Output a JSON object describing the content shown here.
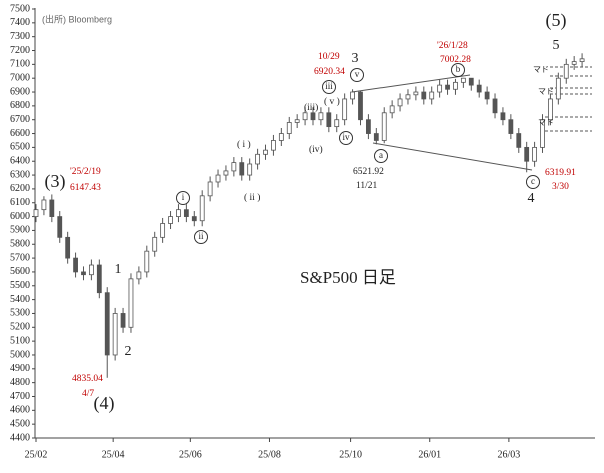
{
  "chart_data": {
    "type": "candlestick",
    "title": "S&P500 日足",
    "source": "(出所) Bloomberg",
    "color": "#555555",
    "x": [
      0,
      4,
      8,
      12,
      16,
      20,
      24,
      28,
      32,
      36,
      40,
      44,
      48,
      52,
      56,
      60,
      64,
      68,
      72,
      76,
      80,
      84,
      88,
      92,
      96,
      100,
      104,
      108,
      112,
      116,
      120,
      124,
      128,
      132,
      136,
      140,
      144,
      148,
      152,
      156,
      160,
      164,
      168,
      172,
      176,
      180,
      184,
      188,
      192,
      196,
      200,
      204,
      208,
      212,
      216,
      220,
      224,
      228,
      232,
      236,
      240,
      244,
      248,
      252,
      256,
      260,
      264,
      268,
      272,
      276
    ],
    "open": [
      6000,
      6050,
      6120,
      6000,
      5850,
      5700,
      5600,
      5580,
      5650,
      5450,
      5000,
      5300,
      5200,
      5550,
      5600,
      5750,
      5850,
      5950,
      6000,
      6050,
      6000,
      5970,
      6150,
      6250,
      6300,
      6330,
      6390,
      6300,
      6380,
      6450,
      6480,
      6550,
      6600,
      6680,
      6700,
      6750,
      6700,
      6750,
      6650,
      6700,
      6850,
      6900,
      6700,
      6600,
      6550,
      6750,
      6800,
      6850,
      6880,
      6900,
      6850,
      6900,
      6950,
      6920,
      6970,
      7000,
      6950,
      6900,
      6850,
      6750,
      6700,
      6600,
      6500,
      6400,
      6500,
      6700,
      6850,
      7000,
      7100,
      7120
    ],
    "high": [
      6090,
      6147,
      6160,
      6040,
      5890,
      5740,
      5640,
      5690,
      5690,
      5490,
      5340,
      5340,
      5590,
      5640,
      5790,
      5890,
      5990,
      6040,
      6090,
      6090,
      6040,
      6190,
      6290,
      6340,
      6370,
      6430,
      6430,
      6420,
      6490,
      6520,
      6590,
      6640,
      6720,
      6740,
      6790,
      6790,
      6790,
      6790,
      6740,
      6890,
      6920,
      6910,
      6740,
      6640,
      6790,
      6840,
      6890,
      6920,
      6940,
      6940,
      6940,
      6990,
      6990,
      6995,
      7002,
      7000,
      6990,
      6940,
      6890,
      6790,
      6740,
      6640,
      6540,
      6540,
      6740,
      6890,
      7040,
      7140,
      7160,
      7180
    ],
    "low": [
      5960,
      6010,
      5960,
      5810,
      5660,
      5560,
      5540,
      5540,
      5410,
      4835,
      4960,
      5160,
      5160,
      5510,
      5560,
      5710,
      5810,
      5910,
      5960,
      5960,
      5930,
      5930,
      6110,
      6210,
      6260,
      6290,
      6260,
      6260,
      6340,
      6410,
      6440,
      6510,
      6560,
      6640,
      6660,
      6660,
      6660,
      6610,
      6610,
      6660,
      6810,
      6660,
      6560,
      6522,
      6530,
      6710,
      6760,
      6810,
      6840,
      6810,
      6810,
      6860,
      6880,
      6880,
      6930,
      6910,
      6860,
      6810,
      6710,
      6660,
      6560,
      6460,
      6320,
      6360,
      6460,
      6660,
      6810,
      6960,
      7060,
      7080
    ],
    "close": [
      6050,
      6120,
      6000,
      5850,
      5700,
      5600,
      5580,
      5650,
      5450,
      5000,
      5300,
      5200,
      5550,
      5600,
      5750,
      5850,
      5950,
      6000,
      6050,
      6000,
      5970,
      6150,
      6250,
      6300,
      6330,
      6390,
      6300,
      6380,
      6450,
      6480,
      6550,
      6600,
      6680,
      6700,
      6750,
      6700,
      6750,
      6650,
      6700,
      6850,
      6900,
      6700,
      6600,
      6550,
      6750,
      6800,
      6850,
      6880,
      6900,
      6850,
      6900,
      6950,
      6920,
      6970,
      7000,
      6950,
      6900,
      6850,
      6750,
      6700,
      6600,
      6500,
      6400,
      6500,
      6700,
      6850,
      7000,
      7100,
      7120,
      7140
    ],
    "xlim": [
      0,
      280
    ],
    "xticks": [
      {
        "value": 0,
        "label": "25/02"
      },
      {
        "value": 39,
        "label": "25/04"
      },
      {
        "value": 78,
        "label": "25/06"
      },
      {
        "value": 118,
        "label": "25/08"
      },
      {
        "value": 159,
        "label": "25/10"
      },
      {
        "value": 199,
        "label": "26/01"
      },
      {
        "value": 239,
        "label": "26/03"
      }
    ],
    "ylim": [
      4400,
      7500
    ],
    "yticks": [
      4400,
      4500,
      4600,
      4700,
      4800,
      4900,
      5000,
      5100,
      5200,
      5300,
      5400,
      5500,
      5600,
      5700,
      5800,
      5900,
      6000,
      6100,
      6200,
      6300,
      6400,
      6500,
      6600,
      6700,
      6800,
      6900,
      7000,
      7100,
      7200,
      7300,
      7400,
      7500
    ],
    "annotations": [
      {
        "text": "(3)",
        "size": "big"
      },
      {
        "text": "'25/2/19",
        "color": "#c00000"
      },
      {
        "text": "6147.43",
        "color": "#c00000"
      },
      {
        "text": "1",
        "size": "mid"
      },
      {
        "text": "2",
        "size": "mid"
      },
      {
        "text": "4835.04",
        "color": "#c00000"
      },
      {
        "text": "4/7",
        "color": "#c00000"
      },
      {
        "text": "(4)",
        "size": "big"
      },
      {
        "text": "i",
        "circled": true
      },
      {
        "text": "ii",
        "circled": true
      },
      {
        "text": "( i )"
      },
      {
        "text": "( ii )"
      },
      {
        "text": "(iii)"
      },
      {
        "text": "( v )"
      },
      {
        "text": "(iv)"
      },
      {
        "text": "iii",
        "circled": true
      },
      {
        "text": "iv",
        "circled": true
      },
      {
        "text": "v",
        "circled": true
      },
      {
        "text": "3",
        "size": "mid"
      },
      {
        "text": "10/29",
        "color": "#c00000"
      },
      {
        "text": "6920.34",
        "color": "#c00000"
      },
      {
        "text": "a",
        "circled": true
      },
      {
        "text": "6521.92"
      },
      {
        "text": "11/21"
      },
      {
        "text": "b",
        "circled": true
      },
      {
        "text": "'26/1/28",
        "color": "#c00000"
      },
      {
        "text": "7002.28",
        "color": "#c00000"
      },
      {
        "text": "c",
        "circled": true
      },
      {
        "text": "4",
        "size": "mid"
      },
      {
        "text": "6319.91",
        "color": "#c00000"
      },
      {
        "text": "3/30",
        "color": "#c00000"
      },
      {
        "text": "(5)",
        "size": "big"
      },
      {
        "text": "5",
        "size": "mid"
      },
      {
        "text": "マド",
        "size": "small"
      },
      {
        "text": "マド",
        "size": "small"
      },
      {
        "text": "マド",
        "size": "small"
      }
    ]
  }
}
